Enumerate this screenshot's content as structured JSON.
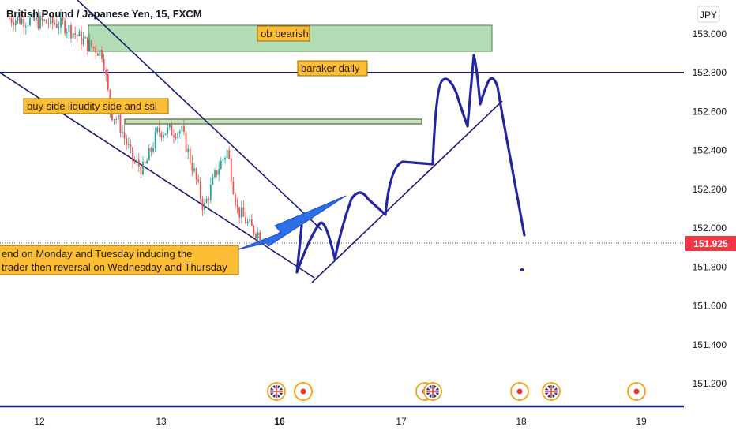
{
  "header": {
    "symbol_title": "British Pound / Japanese Yen, 15, FXCM"
  },
  "currency_badge": "JPY",
  "price_scale": {
    "ticks": [
      "153.000",
      "152.800",
      "152.600",
      "152.400",
      "152.200",
      "152.000",
      "151.800",
      "151.600",
      "151.400",
      "151.200"
    ],
    "current_price": "151.925",
    "current_price_color": "#f23645"
  },
  "time_scale": {
    "ticks": [
      "12",
      "13",
      "16",
      "17",
      "18",
      "19"
    ],
    "bold_tick": "16"
  },
  "annotations": {
    "ob_bearish": "ob bearish",
    "baraker_daily": "baraker daily",
    "buy_side": "buy side liqudity side and ssl",
    "trend_note_line1": "end on Monday and Tuesday inducing the",
    "trend_note_line2": "trader then reversal on Wednesday and Thursday"
  },
  "colors": {
    "up_candle": "#26a69a",
    "down_candle": "#ef5350",
    "drawing_navy": "#1a1a7a",
    "marker_blue": "#2525a0",
    "arrow_blue": "#2d6fe6",
    "zone_green": "#a5d6a7",
    "label_orange": "#fbbd33"
  },
  "chart_data": {
    "type": "candlestick",
    "title": "British Pound / Japanese Yen, 15, FXCM",
    "xlabel": "",
    "ylabel": "",
    "x_ticks": [
      "12",
      "13",
      "16",
      "17",
      "18",
      "19"
    ],
    "ylim": [
      151.1,
      153.1
    ],
    "grid": false,
    "last_price": 151.925,
    "trend_close_estimates": [
      {
        "x": "12",
        "close": 153.0
      },
      {
        "x": "12.5",
        "close": 152.6
      },
      {
        "x": "13",
        "close": 152.5
      },
      {
        "x": "13.5",
        "close": 152.15
      },
      {
        "x": "16",
        "close": 151.95
      }
    ],
    "levels": [
      {
        "label": "baraker daily",
        "price": 152.8
      },
      {
        "label": "ob bearish",
        "price_low": 152.9,
        "price_high": 153.05
      },
      {
        "label": "buy side liqudity side and ssl",
        "price_low": 152.55,
        "price_high": 152.57
      }
    ],
    "projection": {
      "x": [
        "16",
        "16.2",
        "16.4",
        "16.6",
        "16.8",
        "17",
        "17.2",
        "17.4",
        "17.5",
        "17.6",
        "17.7",
        "17.85",
        "18"
      ],
      "y": [
        151.95,
        151.8,
        152.0,
        151.85,
        152.2,
        152.1,
        152.35,
        152.35,
        152.9,
        152.65,
        152.75,
        152.6,
        151.95
      ]
    },
    "event_markers": [
      {
        "x": "16",
        "type": "GBP"
      },
      {
        "x": "16",
        "type": "JPY"
      },
      {
        "x": "17",
        "type": "JPY"
      },
      {
        "x": "17",
        "type": "GBP"
      },
      {
        "x": "18",
        "type": "JPY"
      },
      {
        "x": "18",
        "type": "GBP"
      },
      {
        "x": "19",
        "type": "JPY"
      }
    ]
  }
}
